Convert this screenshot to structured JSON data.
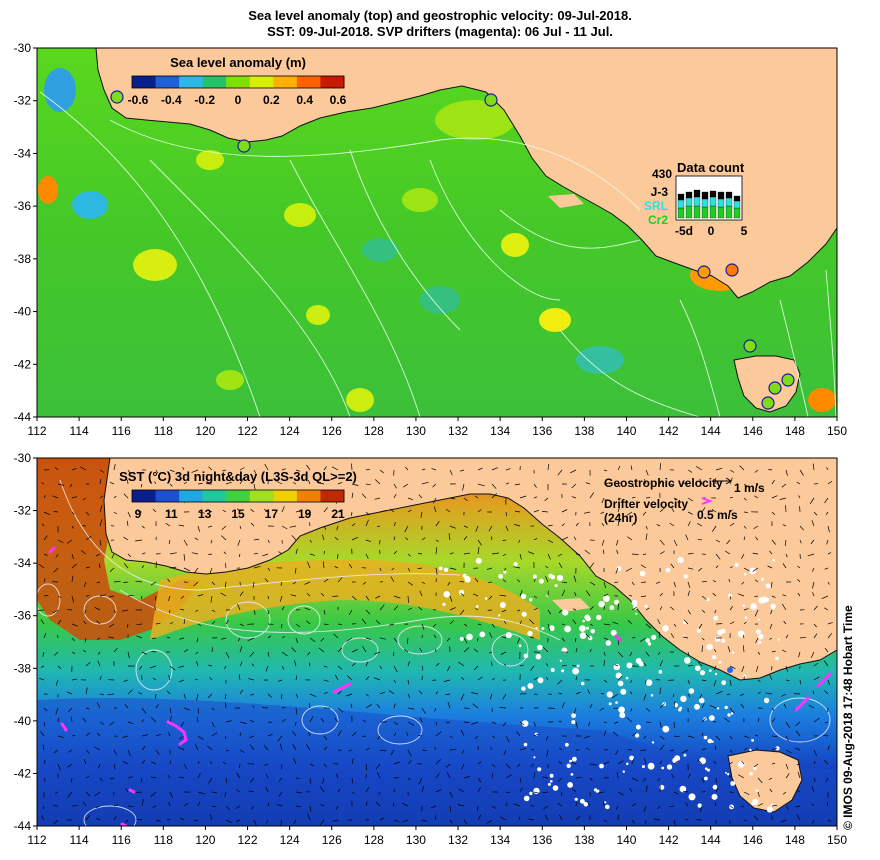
{
  "title_line1": "Sea level anomaly (top) and geostrophic velocity: 09-Jul-2018.",
  "title_line2": "SST: 09-Jul-2018. SVP drifters (magenta): 06 Jul - 11 Jul.",
  "x_ticks": [
    "112",
    "114",
    "116",
    "118",
    "120",
    "122",
    "124",
    "126",
    "128",
    "130",
    "132",
    "134",
    "136",
    "138",
    "140",
    "142",
    "144",
    "146",
    "148",
    "150"
  ],
  "y_ticks": [
    "-30",
    "-32",
    "-34",
    "-36",
    "-38",
    "-40",
    "-42",
    "-44"
  ],
  "top_panel": {
    "colorbar_title": "Sea level anomaly (m)",
    "colorbar_ticks": [
      "-0.6",
      "-0.4",
      "-0.2",
      "0",
      "0.2",
      "0.4",
      "0.6"
    ],
    "colorbar_colors": [
      "#0a1e8c",
      "#1f5fd8",
      "#2bb8e6",
      "#22c36a",
      "#7fe000",
      "#d8ef00",
      "#ffb000",
      "#ff6000",
      "#c81a00"
    ],
    "data_count": {
      "title": "Data count",
      "max_label": "430",
      "series": [
        {
          "name": "J-3",
          "color": "#000000"
        },
        {
          "name": "SRL",
          "color": "#2fe0e0"
        },
        {
          "name": "Cr2",
          "color": "#22cc22"
        }
      ],
      "x_ticks": [
        "-5d",
        "0",
        "5"
      ]
    }
  },
  "bottom_panel": {
    "colorbar_title": "SST (°C) 3d night&day (L3S-3d QL>=2)",
    "colorbar_ticks": [
      "9",
      "11",
      "13",
      "15",
      "17",
      "19",
      "21"
    ],
    "colorbar_colors": [
      "#0a1e8c",
      "#1c50d0",
      "#20a8e0",
      "#20c8a0",
      "#40d040",
      "#a0e020",
      "#f0d000",
      "#f08000",
      "#c02800"
    ],
    "geo_label": "Geostrophic velocity",
    "geo_scale": "1 m/s",
    "drifter_label": "Drifter velocity",
    "drifter_sub": "(24hr)",
    "drifter_scale": "0.5 m/s"
  },
  "side_text": "© IMOS 09-Aug-2018 17:48 Hobart Time",
  "colors": {
    "land": "#fcc99b",
    "drifter": "#ff33ff",
    "ocean_green": "#44cc22"
  }
}
